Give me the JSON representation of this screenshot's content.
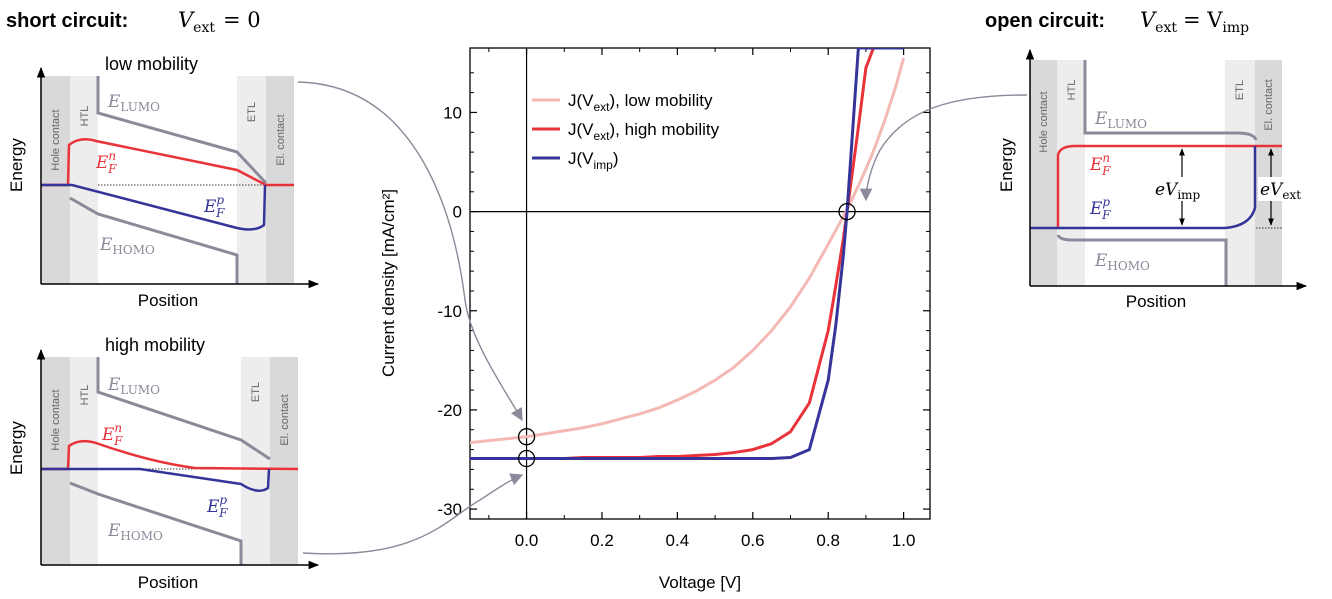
{
  "header": {
    "short_circuit_prefix": "short circuit:",
    "short_circuit_eq_var": "V",
    "short_circuit_eq_sub": "ext",
    "short_circuit_eq_rhs": "= 0",
    "open_circuit_prefix": "open circuit:",
    "open_circuit_eq_var": "V",
    "open_circuit_eq_sub": "ext",
    "open_circuit_eq_rhs_var": "= V",
    "open_circuit_eq_rhs_sub": "imp"
  },
  "band_low": {
    "title": "low mobility",
    "ylabel": "Energy",
    "xlabel": "Position",
    "hole_contact": "Hole contact",
    "htl": "HTL",
    "etl": "ETL",
    "el_contact": "El. contact",
    "lumo_base": "E",
    "lumo_sub": "LUMO",
    "homo_base": "E",
    "homo_sub": "HOMO",
    "efn_base": "E",
    "efn_sub": "F",
    "efn_sup": "n",
    "efp_base": "E",
    "efp_sub": "F",
    "efp_sup": "p"
  },
  "band_high": {
    "title": "high mobility",
    "ylabel": "Energy",
    "xlabel": "Position",
    "hole_contact": "Hole contact",
    "htl": "HTL",
    "etl": "ETL",
    "el_contact": "El. contact",
    "lumo_base": "E",
    "lumo_sub": "LUMO",
    "homo_base": "E",
    "homo_sub": "HOMO",
    "efn_base": "E",
    "efn_sub": "F",
    "efn_sup": "n",
    "efp_base": "E",
    "efp_sub": "F",
    "efp_sup": "p"
  },
  "band_open": {
    "ylabel": "Energy",
    "xlabel": "Position",
    "hole_contact": "Hole contact",
    "htl": "HTL",
    "etl": "ETL",
    "el_contact": "El. contact",
    "lumo_base": "E",
    "lumo_sub": "LUMO",
    "homo_base": "E",
    "homo_sub": "HOMO",
    "efn_base": "E",
    "efn_sub": "F",
    "efn_sup": "n",
    "efp_base": "E",
    "efp_sub": "F",
    "efp_sup": "p",
    "vimp_prefix": "eV",
    "vimp_sub": "imp",
    "vext_prefix": "eV",
    "vext_sub": "ext"
  },
  "colors": {
    "low_mobility": "#f4b9b5",
    "high_mobility": "#e8333a",
    "j_imp": "#34349a",
    "band_edge": "#8a8a9a",
    "arrow": "#8a8a9a",
    "contact_dark": "#d9d9d9",
    "contact_light": "#ededed"
  },
  "chart_data": {
    "type": "line",
    "xlabel": "Voltage [V]",
    "ylabel": "Current density [mA/cm²]",
    "xlim": [
      -0.15,
      1.07
    ],
    "ylim": [
      -31,
      16.5
    ],
    "xticks": [
      0.0,
      0.2,
      0.4,
      0.6,
      0.8,
      1.0
    ],
    "xtick_labels": [
      "0.0",
      "0.2",
      "0.4",
      "0.6",
      "0.8",
      "1.0"
    ],
    "yticks": [
      -30,
      -20,
      -10,
      0,
      10
    ],
    "ytick_labels": [
      "-30",
      "-20",
      "-10",
      "0",
      "10"
    ],
    "legend_position": "top-center",
    "legend": [
      {
        "base": "J(V",
        "sub": "ext",
        "tail": "), low mobility"
      },
      {
        "base": "J(V",
        "sub": "ext",
        "tail": "), high mobility"
      },
      {
        "base": "J(V",
        "sub": "imp",
        "tail": ")"
      }
    ],
    "x": [
      -0.15,
      -0.1,
      -0.05,
      0.0,
      0.05,
      0.1,
      0.15,
      0.2,
      0.25,
      0.3,
      0.35,
      0.4,
      0.45,
      0.5,
      0.55,
      0.6,
      0.65,
      0.7,
      0.75,
      0.8,
      0.82,
      0.84,
      0.85,
      0.86,
      0.88,
      0.9,
      0.92,
      0.95,
      0.98,
      1.0
    ],
    "series": [
      {
        "name": "J(Vext), low mobility",
        "color": "#f4b9b5",
        "values": [
          -23.3,
          -23.1,
          -22.9,
          -22.7,
          -22.4,
          -22.1,
          -21.8,
          -21.4,
          -20.9,
          -20.4,
          -19.8,
          -19.0,
          -18.1,
          -17.0,
          -15.7,
          -14.0,
          -12.0,
          -9.6,
          -6.7,
          -3.3,
          -1.9,
          -0.5,
          0.2,
          1.0,
          2.6,
          4.3,
          6.1,
          9.2,
          12.7,
          15.5
        ]
      },
      {
        "name": "J(Vext), high mobility",
        "color": "#e8333a",
        "values": [
          -24.9,
          -24.9,
          -24.9,
          -24.9,
          -24.9,
          -24.9,
          -24.8,
          -24.8,
          -24.8,
          -24.8,
          -24.7,
          -24.7,
          -24.6,
          -24.5,
          -24.3,
          -24.0,
          -23.4,
          -22.2,
          -19.3,
          -12.0,
          -7.5,
          -2.8,
          0.0,
          2.8,
          8.5,
          14.5,
          16.5,
          16.5,
          16.5,
          16.5
        ]
      },
      {
        "name": "J(Vimp)",
        "color": "#34349a",
        "values": [
          -24.9,
          -24.9,
          -24.9,
          -24.9,
          -24.9,
          -24.9,
          -24.9,
          -24.9,
          -24.9,
          -24.9,
          -24.9,
          -24.9,
          -24.9,
          -24.9,
          -24.9,
          -24.9,
          -24.9,
          -24.8,
          -24.0,
          -17.0,
          -11.5,
          -4.5,
          0.0,
          5.5,
          16.5,
          16.5,
          16.5,
          16.5,
          16.5,
          16.5
        ]
      }
    ],
    "markers": [
      {
        "x": 0.0,
        "y": -22.7
      },
      {
        "x": 0.0,
        "y": -24.9
      },
      {
        "x": 0.85,
        "y": 0.0
      }
    ]
  }
}
